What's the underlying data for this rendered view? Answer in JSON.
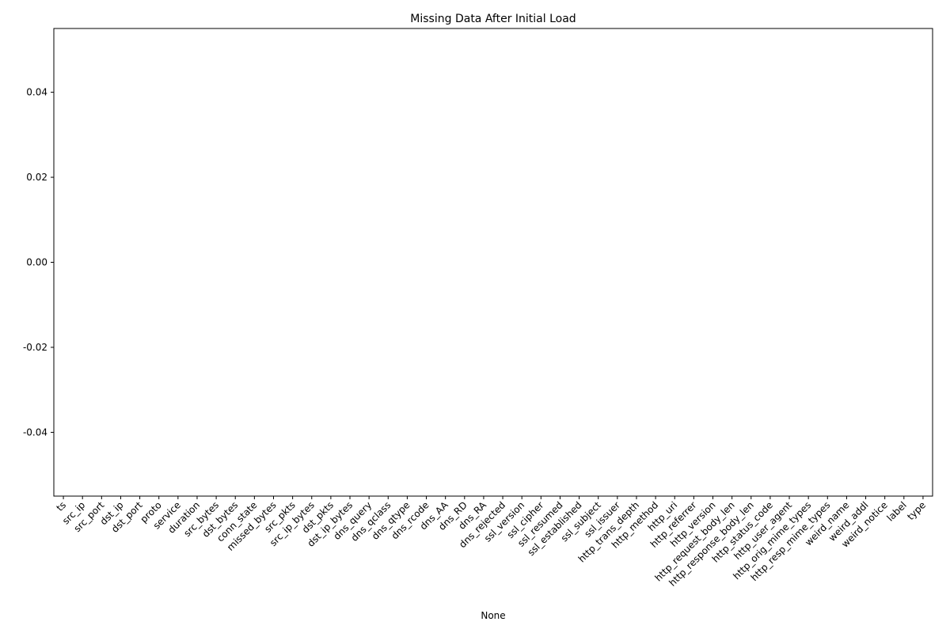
{
  "chart_data": {
    "type": "bar",
    "title": "Missing Data After Initial Load",
    "xlabel": "None",
    "ylabel": "",
    "categories": [
      "ts",
      "src_ip",
      "src_port",
      "dst_ip",
      "dst_port",
      "proto",
      "service",
      "duration",
      "src_bytes",
      "dst_bytes",
      "conn_state",
      "missed_bytes",
      "src_pkts",
      "src_ip_bytes",
      "dst_pkts",
      "dst_ip_bytes",
      "dns_query",
      "dns_qclass",
      "dns_qtype",
      "dns_rcode",
      "dns_AA",
      "dns_RD",
      "dns_RA",
      "dns_rejected",
      "ssl_version",
      "ssl_cipher",
      "ssl_resumed",
      "ssl_established",
      "ssl_subject",
      "ssl_issuer",
      "http_trans_depth",
      "http_method",
      "http_uri",
      "http_referrer",
      "http_version",
      "http_request_body_len",
      "http_response_body_len",
      "http_status_code",
      "http_user_agent",
      "http_orig_mime_types",
      "http_resp_mime_types",
      "weird_name",
      "weird_addl",
      "weird_notice",
      "label",
      "type"
    ],
    "values": [
      0,
      0,
      0,
      0,
      0,
      0,
      0,
      0,
      0,
      0,
      0,
      0,
      0,
      0,
      0,
      0,
      0,
      0,
      0,
      0,
      0,
      0,
      0,
      0,
      0,
      0,
      0,
      0,
      0,
      0,
      0,
      0,
      0,
      0,
      0,
      0,
      0,
      0,
      0,
      0,
      0,
      0,
      0,
      0,
      0,
      0
    ],
    "ylim": [
      -0.055,
      0.055
    ],
    "yticks": [
      "0.04",
      "0.02",
      "0.00",
      "-0.02",
      "-0.04"
    ],
    "grid": false,
    "legend": false
  }
}
